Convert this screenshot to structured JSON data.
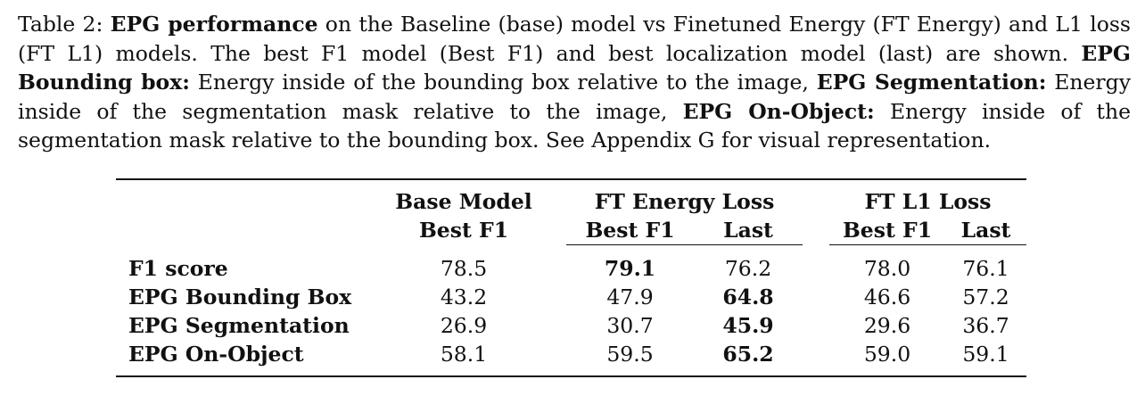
{
  "caption": {
    "label": "Table 2:",
    "b1": "EPG performance",
    "t1": " on the Baseline (base) model vs Finetuned Energy (FT Energy) and L1 loss (FT L1) models. The best F1 model (Best F1) and best localization model (last) are shown. ",
    "b2": "EPG Bounding box:",
    "t2": " Energy inside of the bounding box relative to the image, ",
    "b3": "EPG Segmentation:",
    "t3": " Energy inside of the segmentation mask relative to the image, ",
    "b4": "EPG On-Object:",
    "t4": " Energy inside of the segmentation mask relative to the bounding box. See Appendix G for visual representation."
  },
  "table": {
    "groups": {
      "base": "Base Model",
      "ft_energy": "FT Energy Loss",
      "ft_l1": "FT L1 Loss"
    },
    "subheaders": {
      "base_best": "Best F1",
      "energy_best": "Best F1",
      "energy_last": "Last",
      "l1_best": "Best F1",
      "l1_last": "Last"
    },
    "rows": [
      {
        "label": "F1 score",
        "values": [
          "78.5",
          "79.1",
          "76.2",
          "78.0",
          "76.1"
        ]
      },
      {
        "label": "EPG Bounding Box",
        "values": [
          "43.2",
          "47.9",
          "64.8",
          "46.6",
          "57.2"
        ]
      },
      {
        "label": "EPG Segmentation",
        "values": [
          "26.9",
          "30.7",
          "45.9",
          "29.6",
          "36.7"
        ]
      },
      {
        "label": "EPG On-Object",
        "values": [
          "58.1",
          "59.5",
          "65.2",
          "59.0",
          "59.1"
        ]
      }
    ]
  }
}
